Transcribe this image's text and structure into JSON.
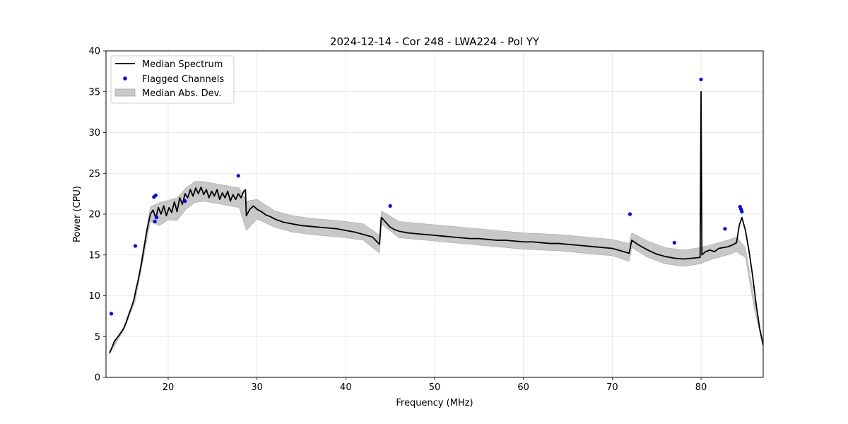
{
  "chart_data": {
    "type": "line",
    "title": "2024-12-14 - Cor 248 - LWA224 - Pol YY",
    "xlabel": "Frequency (MHz)",
    "ylabel": "Power (CPU)",
    "xlim": [
      13.0,
      87.0
    ],
    "ylim": [
      0,
      40
    ],
    "xticks": [
      20,
      30,
      40,
      50,
      60,
      70,
      80
    ],
    "yticks": [
      0,
      5,
      10,
      15,
      20,
      25,
      30,
      35,
      40
    ],
    "grid": true,
    "legend": {
      "position": "top-left",
      "entries": [
        "Median Spectrum",
        "Flagged Channels",
        "Median Abs. Dev."
      ]
    },
    "colors": {
      "line": "#000000",
      "flagged": "#0000ff",
      "band": "#c8c8c8"
    },
    "series": [
      {
        "name": "Median Spectrum",
        "x": [
          13.4,
          13.6,
          13.8,
          13.9,
          14.0,
          14.5,
          15.0,
          15.3,
          15.6,
          15.8,
          16.0,
          16.2,
          16.3,
          16.6,
          17.0,
          17.3,
          17.6,
          18.0,
          18.3,
          18.6,
          18.9,
          19.2,
          19.5,
          19.8,
          20.1,
          20.4,
          20.7,
          21.0,
          21.3,
          21.6,
          21.9,
          22.2,
          22.5,
          22.8,
          23.1,
          23.4,
          23.7,
          24.0,
          24.3,
          24.6,
          24.9,
          25.2,
          25.5,
          25.8,
          26.1,
          26.4,
          26.7,
          27.0,
          27.3,
          27.6,
          27.9,
          28.2,
          28.5,
          28.7,
          28.8,
          29.2,
          29.6,
          30.0,
          30.5,
          31.0,
          31.5,
          32.0,
          32.5,
          33.0,
          34.0,
          35.0,
          36.0,
          37.0,
          38.0,
          39.0,
          40.0,
          41.0,
          42.0,
          43.0,
          43.8,
          44.0,
          44.5,
          45.0,
          45.5,
          46.0,
          47.0,
          48.0,
          49.0,
          50.0,
          51.0,
          52.0,
          53.0,
          54.0,
          55.0,
          56.0,
          57.0,
          58.0,
          59.0,
          60.0,
          61.0,
          62.0,
          63.0,
          64.0,
          65.0,
          66.0,
          67.0,
          68.0,
          69.0,
          70.0,
          71.0,
          71.9,
          72.2,
          73.0,
          74.0,
          75.0,
          76.0,
          77.0,
          78.0,
          79.0,
          79.9,
          80.0,
          80.1,
          80.5,
          81.0,
          81.5,
          82.0,
          82.5,
          83.0,
          83.5,
          84.0,
          84.3,
          84.6,
          85.0,
          85.4,
          85.8,
          86.2,
          86.6,
          87.0
        ],
        "y": [
          3.0,
          3.5,
          4.0,
          4.3,
          4.5,
          5.2,
          6.0,
          6.8,
          7.8,
          8.4,
          9.0,
          9.8,
          10.4,
          11.8,
          14.0,
          16.0,
          18.0,
          20.0,
          20.5,
          19.5,
          20.8,
          20.0,
          21.0,
          19.8,
          20.8,
          20.2,
          21.5,
          20.3,
          22.0,
          21.2,
          22.5,
          22.0,
          23.0,
          22.2,
          23.2,
          22.5,
          23.3,
          22.4,
          23.0,
          22.0,
          22.8,
          22.2,
          23.0,
          21.8,
          22.6,
          22.0,
          22.8,
          21.6,
          22.4,
          21.8,
          22.5,
          22.0,
          22.8,
          23.0,
          19.8,
          20.6,
          21.0,
          20.6,
          20.3,
          19.9,
          19.7,
          19.4,
          19.2,
          19.0,
          18.8,
          18.6,
          18.5,
          18.4,
          18.3,
          18.2,
          18.0,
          17.8,
          17.5,
          17.2,
          16.3,
          19.6,
          19.0,
          18.4,
          18.1,
          17.9,
          17.7,
          17.6,
          17.5,
          17.4,
          17.3,
          17.2,
          17.1,
          17.0,
          17.0,
          16.9,
          16.8,
          16.8,
          16.7,
          16.6,
          16.6,
          16.5,
          16.4,
          16.4,
          16.3,
          16.2,
          16.1,
          16.0,
          15.9,
          15.8,
          15.5,
          15.2,
          16.8,
          16.2,
          15.6,
          15.1,
          14.8,
          14.6,
          14.5,
          14.6,
          14.7,
          35.0,
          15.0,
          15.4,
          15.6,
          15.4,
          15.8,
          15.9,
          16.0,
          16.2,
          16.5,
          18.6,
          19.6,
          18.0,
          15.5,
          12.5,
          9.0,
          6.0,
          3.9
        ]
      },
      {
        "name": "Flagged Channels",
        "x": [
          13.6,
          16.3,
          18.4,
          18.6,
          18.5,
          18.7,
          21.9,
          27.9,
          45.0,
          72.0,
          77.0,
          80.0,
          82.7,
          84.4,
          84.5,
          84.6
        ],
        "y": [
          7.8,
          16.1,
          22.1,
          22.3,
          19.1,
          19.6,
          21.6,
          24.7,
          21.0,
          20.0,
          16.5,
          36.5,
          18.2,
          20.9,
          20.6,
          20.3
        ]
      }
    ],
    "band": {
      "name": "Median Abs. Dev.",
      "x": [
        13.4,
        15.0,
        16.3,
        17.0,
        18.0,
        19.0,
        20.0,
        21.0,
        22.0,
        23.0,
        24.0,
        25.0,
        26.0,
        27.0,
        28.0,
        28.8,
        30.0,
        32.0,
        34.0,
        36.0,
        38.0,
        40.0,
        42.0,
        43.8,
        44.0,
        46.0,
        48.0,
        50.0,
        52.0,
        54.0,
        56.0,
        58.0,
        60.0,
        62.0,
        64.0,
        66.0,
        68.0,
        70.0,
        71.9,
        72.2,
        74.0,
        76.0,
        78.0,
        79.9,
        81.0,
        83.0,
        84.0,
        85.0,
        86.0,
        87.0
      ],
      "upper": [
        3.2,
        6.2,
        10.0,
        14.6,
        20.9,
        21.4,
        21.7,
        22.0,
        23.2,
        24.0,
        24.0,
        23.8,
        23.6,
        23.4,
        23.2,
        21.6,
        21.8,
        20.4,
        19.8,
        19.5,
        19.3,
        19.1,
        18.8,
        17.4,
        20.4,
        19.1,
        18.9,
        18.7,
        18.5,
        18.3,
        18.1,
        17.9,
        17.7,
        17.6,
        17.5,
        17.3,
        17.1,
        16.9,
        16.4,
        17.7,
        16.7,
        15.9,
        15.6,
        15.9,
        16.2,
        16.8,
        17.2,
        15.9,
        9.6,
        4.0
      ],
      "lower": [
        2.8,
        5.8,
        9.4,
        13.4,
        19.1,
        18.6,
        19.3,
        19.2,
        20.6,
        21.4,
        21.6,
        21.4,
        21.2,
        21.0,
        20.8,
        18.0,
        19.4,
        18.4,
        17.8,
        17.5,
        17.3,
        17.1,
        16.8,
        15.2,
        18.8,
        17.1,
        16.9,
        16.7,
        16.5,
        16.3,
        16.1,
        15.9,
        15.7,
        15.6,
        15.5,
        15.3,
        15.1,
        14.9,
        14.2,
        15.9,
        14.7,
        13.9,
        13.6,
        13.9,
        14.4,
        15.0,
        15.4,
        14.7,
        8.4,
        3.8
      ]
    }
  }
}
